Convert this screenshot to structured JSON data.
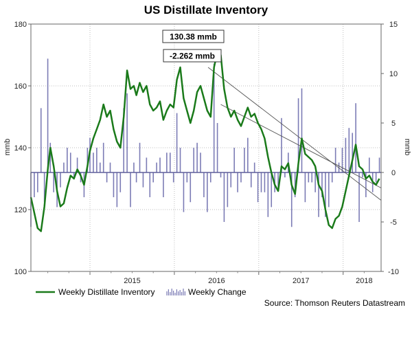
{
  "chart_data": {
    "type": "line",
    "title": "US Distillate Inventory",
    "ylabel_left": "mmb",
    "ylabel_right": "mmb",
    "ylim_left": [
      100,
      180
    ],
    "ylim_right": [
      -10,
      15
    ],
    "yticks_left": [
      100,
      120,
      140,
      160,
      180
    ],
    "yticks_right": [
      -10,
      -5,
      0,
      5,
      10,
      15
    ],
    "xlim": [
      2014.3,
      2018.45
    ],
    "year_ticks": [
      2015,
      2016,
      2017,
      2018
    ],
    "year_labels": [
      "2015",
      "2016",
      "2017",
      "2018"
    ],
    "grid": true,
    "legend_position": "bottom-left",
    "series": [
      {
        "name": "Weekly Distillate Inventory",
        "type": "line",
        "axis": "left",
        "color": "#1a7a1a",
        "x": [
          2014.3,
          2014.34,
          2014.38,
          2014.42,
          2014.46,
          2014.5,
          2014.53,
          2014.57,
          2014.61,
          2014.65,
          2014.69,
          2014.73,
          2014.77,
          2014.81,
          2014.85,
          2014.89,
          2014.93,
          2014.97,
          2015.0,
          2015.04,
          2015.08,
          2015.12,
          2015.16,
          2015.2,
          2015.24,
          2015.28,
          2015.32,
          2015.36,
          2015.4,
          2015.44,
          2015.48,
          2015.52,
          2015.55,
          2015.59,
          2015.63,
          2015.67,
          2015.71,
          2015.75,
          2015.79,
          2015.83,
          2015.87,
          2015.91,
          2015.95,
          2015.99,
          2016.03,
          2016.07,
          2016.11,
          2016.15,
          2016.19,
          2016.23,
          2016.27,
          2016.31,
          2016.35,
          2016.39,
          2016.43,
          2016.47,
          2016.51,
          2016.55,
          2016.59,
          2016.63,
          2016.67,
          2016.71,
          2016.75,
          2016.79,
          2016.83,
          2016.87,
          2016.91,
          2016.95,
          2016.99,
          2017.03,
          2017.07,
          2017.11,
          2017.15,
          2017.19,
          2017.23,
          2017.27,
          2017.31,
          2017.35,
          2017.39,
          2017.43,
          2017.47,
          2017.51,
          2017.55,
          2017.59,
          2017.63,
          2017.67,
          2017.71,
          2017.75,
          2017.79,
          2017.83,
          2017.87,
          2017.91,
          2017.95,
          2017.99,
          2018.03,
          2018.07,
          2018.11,
          2018.15,
          2018.19,
          2018.23,
          2018.27,
          2018.31,
          2018.35,
          2018.39,
          2018.43
        ],
        "values": [
          124,
          119,
          114,
          113,
          121,
          133,
          140,
          134,
          126,
          121,
          122,
          127,
          131,
          130,
          133,
          131,
          128,
          134,
          139,
          143,
          146,
          149,
          154,
          150,
          152,
          146,
          142,
          140,
          150,
          165,
          159,
          160,
          157,
          161,
          158,
          160,
          154,
          152,
          153,
          155,
          149,
          152,
          154,
          153,
          162,
          166,
          156,
          152,
          148,
          152,
          158,
          160,
          156,
          152,
          150,
          166,
          171,
          170,
          159,
          153,
          150,
          152,
          149,
          147,
          150,
          153,
          150,
          151,
          148,
          146,
          143,
          137,
          132,
          128,
          126,
          134,
          133,
          135,
          128,
          125,
          135,
          143,
          138,
          137,
          136,
          134,
          128,
          126,
          120,
          115,
          114,
          117,
          118,
          121,
          126,
          131,
          136,
          141,
          134,
          133,
          130,
          131,
          129,
          128,
          130
        ]
      },
      {
        "name": "Weekly Change",
        "type": "bar",
        "axis": "right",
        "color": "#7b7bb5",
        "x": [
          2014.3,
          2014.34,
          2014.38,
          2014.42,
          2014.46,
          2014.5,
          2014.53,
          2014.57,
          2014.61,
          2014.65,
          2014.69,
          2014.73,
          2014.77,
          2014.81,
          2014.85,
          2014.89,
          2014.93,
          2014.97,
          2015.0,
          2015.04,
          2015.08,
          2015.12,
          2015.16,
          2015.2,
          2015.24,
          2015.28,
          2015.32,
          2015.36,
          2015.4,
          2015.44,
          2015.48,
          2015.52,
          2015.55,
          2015.59,
          2015.63,
          2015.67,
          2015.71,
          2015.75,
          2015.79,
          2015.83,
          2015.87,
          2015.91,
          2015.95,
          2015.99,
          2016.03,
          2016.07,
          2016.11,
          2016.15,
          2016.19,
          2016.23,
          2016.27,
          2016.31,
          2016.35,
          2016.39,
          2016.43,
          2016.47,
          2016.51,
          2016.55,
          2016.59,
          2016.63,
          2016.67,
          2016.71,
          2016.75,
          2016.79,
          2016.83,
          2016.87,
          2016.91,
          2016.95,
          2016.99,
          2017.03,
          2017.07,
          2017.11,
          2017.15,
          2017.19,
          2017.23,
          2017.27,
          2017.31,
          2017.35,
          2017.39,
          2017.43,
          2017.47,
          2017.51,
          2017.55,
          2017.59,
          2017.63,
          2017.67,
          2017.71,
          2017.75,
          2017.79,
          2017.83,
          2017.87,
          2017.91,
          2017.95,
          2017.99,
          2018.03,
          2018.07,
          2018.11,
          2018.15,
          2018.19,
          2018.23,
          2018.27,
          2018.31,
          2018.35,
          2018.39,
          2018.43
        ],
        "values": [
          -5.5,
          -2.5,
          -2.0,
          6.5,
          -3.0,
          11.5,
          3.0,
          -2.0,
          -3.5,
          -1.5,
          1.0,
          2.5,
          2.0,
          -0.5,
          1.5,
          -1.0,
          -2.5,
          2.5,
          3.5,
          2.0,
          2.5,
          1.0,
          3.0,
          -1.0,
          1.0,
          -2.5,
          -3.5,
          -2.0,
          6.5,
          8.0,
          -3.5,
          1.0,
          -1.0,
          3.0,
          -1.5,
          1.5,
          -2.5,
          -1.0,
          1.0,
          1.5,
          -2.5,
          2.0,
          2.0,
          -1.0,
          6.0,
          2.5,
          -4.0,
          -1.0,
          -3.0,
          2.5,
          3.0,
          2.0,
          -2.5,
          -4.0,
          -1.0,
          11.0,
          5.0,
          -0.5,
          -5.0,
          -3.5,
          -1.5,
          2.5,
          -2.0,
          -1.0,
          2.5,
          3.5,
          -1.5,
          1.0,
          -3.0,
          -2.0,
          -2.0,
          -4.5,
          -3.5,
          -2.0,
          -1.5,
          5.5,
          -0.5,
          2.0,
          -5.5,
          -2.5,
          7.5,
          8.5,
          -3.0,
          -1.0,
          -1.0,
          -2.0,
          -4.5,
          -2.5,
          -4.5,
          -3.5,
          -1.0,
          2.5,
          1.0,
          2.5,
          3.5,
          4.5,
          4.0,
          7.0,
          -5.0,
          -0.5,
          -2.5,
          1.5,
          -2.0,
          -1.0,
          1.5
        ]
      }
    ],
    "trendlines": [
      {
        "from": [
          2016.55,
          154
        ],
        "to": [
          2018.45,
          127
        ],
        "axis": "left",
        "label": "130.38 mmb"
      },
      {
        "from": [
          2016.4,
          166
        ],
        "to": [
          2018.45,
          123
        ],
        "axis": "left",
        "label": "-2.262 mmb"
      }
    ],
    "annotations": [
      {
        "text": "130.38 mmb"
      },
      {
        "text": "-2.262 mmb"
      }
    ],
    "source": "Source: Thomson Reuters Datastream"
  }
}
